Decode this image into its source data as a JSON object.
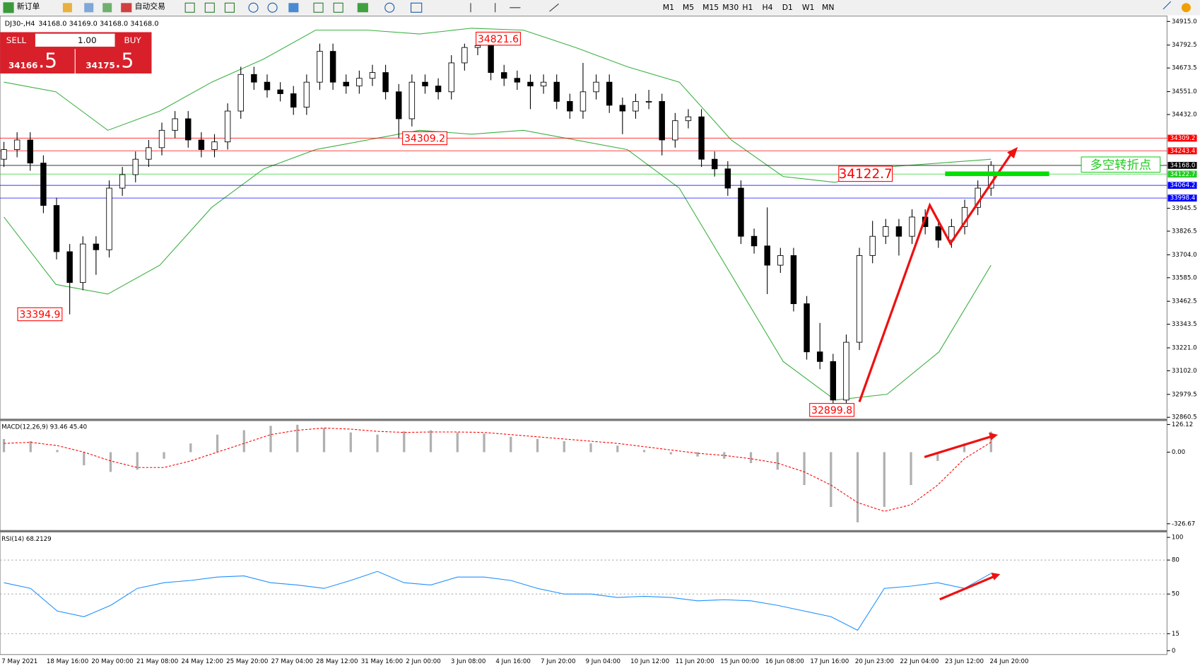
{
  "toolbar": {
    "new_order": "新订单",
    "auto_trade": "自动交易",
    "timeframes": [
      "M1",
      "M5",
      "M15",
      "M30",
      "H1",
      "H4",
      "D1",
      "W1",
      "MN"
    ]
  },
  "order_panel": {
    "sell": "SELL",
    "buy": "BUY",
    "volume": "1.00",
    "bid_main": "34166",
    "bid_frac": ".5",
    "ask_main": "34175",
    "ask_frac": ".5"
  },
  "chart_data": [
    {
      "type": "candlestick",
      "title": "DJ30-,H4",
      "header_prices": "34168.0 34169.0 34168.0 34168.0",
      "candles": [
        [
          34200,
          34290,
          34160,
          34250
        ],
        [
          34250,
          34340,
          34210,
          34300
        ],
        [
          34300,
          34340,
          34140,
          34180
        ],
        [
          34180,
          34220,
          33920,
          33960
        ],
        [
          33960,
          34000,
          33680,
          33720
        ],
        [
          33720,
          33760,
          33394.9,
          33560
        ],
        [
          33560,
          33800,
          33520,
          33760
        ],
        [
          33760,
          33800,
          33600,
          33730
        ],
        [
          33730,
          34090,
          33690,
          34050
        ],
        [
          34050,
          34160,
          34010,
          34120
        ],
        [
          34120,
          34240,
          34080,
          34200
        ],
        [
          34200,
          34300,
          34160,
          34260
        ],
        [
          34260,
          34390,
          34220,
          34350
        ],
        [
          34350,
          34450,
          34310,
          34410
        ],
        [
          34410,
          34450,
          34260,
          34300
        ],
        [
          34300,
          34340,
          34210,
          34250
        ],
        [
          34250,
          34330,
          34210,
          34290
        ],
        [
          34290,
          34490,
          34250,
          34450
        ],
        [
          34450,
          34680,
          34410,
          34640
        ],
        [
          34640,
          34680,
          34560,
          34600
        ],
        [
          34600,
          34640,
          34520,
          34560
        ],
        [
          34560,
          34600,
          34500,
          34540
        ],
        [
          34540,
          34580,
          34430,
          34470
        ],
        [
          34470,
          34640,
          34430,
          34600
        ],
        [
          34600,
          34800,
          34560,
          34760
        ],
        [
          34760,
          34800,
          34560,
          34600
        ],
        [
          34600,
          34640,
          34540,
          34580
        ],
        [
          34580,
          34660,
          34540,
          34620
        ],
        [
          34620,
          34690,
          34580,
          34650
        ],
        [
          34650,
          34690,
          34510,
          34550
        ],
        [
          34550,
          34590,
          34309.2,
          34410
        ],
        [
          34410,
          34640,
          34370,
          34600
        ],
        [
          34600,
          34640,
          34540,
          34580
        ],
        [
          34580,
          34620,
          34510,
          34550
        ],
        [
          34550,
          34740,
          34510,
          34700
        ],
        [
          34700,
          34800,
          34660,
          34780
        ],
        [
          34780,
          34821.6,
          34740,
          34790
        ],
        [
          34790,
          34810,
          34610,
          34650
        ],
        [
          34650,
          34690,
          34580,
          34620
        ],
        [
          34620,
          34660,
          34560,
          34600
        ],
        [
          34600,
          34640,
          34460,
          34580
        ],
        [
          34580,
          34640,
          34540,
          34600
        ],
        [
          34600,
          34640,
          34460,
          34500
        ],
        [
          34500,
          34540,
          34410,
          34450
        ],
        [
          34450,
          34700,
          34410,
          34550
        ],
        [
          34550,
          34640,
          34510,
          34600
        ],
        [
          34600,
          34640,
          34440,
          34480
        ],
        [
          34480,
          34520,
          34330,
          34450
        ],
        [
          34450,
          34540,
          34410,
          34500
        ],
        [
          34500,
          34560,
          34460,
          34500
        ],
        [
          34500,
          34540,
          34220,
          34300
        ],
        [
          34300,
          34440,
          34260,
          34400
        ],
        [
          34400,
          34460,
          34360,
          34420
        ],
        [
          34420,
          34460,
          34160,
          34200
        ],
        [
          34200,
          34240,
          34110,
          34150
        ],
        [
          34150,
          34190,
          34010,
          34050
        ],
        [
          34050,
          34090,
          33760,
          33800
        ],
        [
          33800,
          33840,
          33710,
          33750
        ],
        [
          33750,
          33950,
          33500,
          33650
        ],
        [
          33650,
          33740,
          33610,
          33700
        ],
        [
          33700,
          33740,
          33410,
          33450
        ],
        [
          33450,
          33490,
          33160,
          33200
        ],
        [
          33200,
          33350,
          33110,
          33150
        ],
        [
          33150,
          33190,
          32899.8,
          32950
        ],
        [
          32950,
          33290,
          32910,
          33250
        ],
        [
          33250,
          33740,
          33210,
          33700
        ],
        [
          33700,
          33880,
          33660,
          33800
        ],
        [
          33800,
          33890,
          33760,
          33850
        ],
        [
          33850,
          33890,
          33700,
          33800
        ],
        [
          33800,
          33940,
          33760,
          33900
        ],
        [
          33900,
          33940,
          33810,
          33850
        ],
        [
          33850,
          33890,
          33740,
          33780
        ],
        [
          33780,
          33890,
          33740,
          33850
        ],
        [
          33850,
          33990,
          33810,
          33950
        ],
        [
          33950,
          34090,
          33910,
          34050
        ],
        [
          34050,
          34190,
          34010,
          34168
        ]
      ],
      "bb_upper": [
        34600,
        34550,
        34350,
        34450,
        34600,
        34720,
        34870,
        34870,
        34850,
        34880,
        34870,
        34780,
        34680,
        34600,
        34300,
        34110,
        34080,
        34160,
        34180,
        34200
      ],
      "bb_lower": [
        33900,
        33550,
        33500,
        33650,
        33950,
        34150,
        34250,
        34300,
        34350,
        34330,
        34350,
        34300,
        34250,
        34050,
        33600,
        33150,
        32950,
        32980,
        33200,
        33650
      ],
      "band_color": "#3cb043",
      "up_color": "#ffffff",
      "down_color": "#000000",
      "ylim": [
        32853,
        34939
      ],
      "yticks": [
        {
          "value": 34915,
          "label": "34915.0"
        },
        {
          "value": 34792.5,
          "label": "34792.5"
        },
        {
          "value": 34673.5,
          "label": "34673.5"
        },
        {
          "value": 34551,
          "label": "34551.0"
        },
        {
          "value": 34432,
          "label": "34432.0"
        },
        {
          "value": 33945.5,
          "label": "33945.5"
        },
        {
          "value": 33826.5,
          "label": "33826.5"
        },
        {
          "value": 33704,
          "label": "33704.0"
        },
        {
          "value": 33585,
          "label": "33585.0"
        },
        {
          "value": 33462.5,
          "label": "33462.5"
        },
        {
          "value": 33343.5,
          "label": "33343.5"
        },
        {
          "value": 33221,
          "label": "33221.0"
        },
        {
          "value": 33102,
          "label": "33102.0"
        },
        {
          "value": 32979.5,
          "label": "32979.5"
        },
        {
          "value": 32860.5,
          "label": "32860.5"
        }
      ],
      "levels": [
        {
          "value": 34309.2,
          "label": "34309.2",
          "color": "#ff0000"
        },
        {
          "value": 34243.4,
          "label": "34243.4",
          "color": "#ff0000"
        },
        {
          "value": 34168,
          "label": "34168.0",
          "color": "#000000"
        },
        {
          "value": 34122.7,
          "label": "34122.7",
          "color": "#22cc22"
        },
        {
          "value": 34064.2,
          "label": "34064.2",
          "color": "#0000ff"
        },
        {
          "value": 33998.4,
          "label": "33998.4",
          "color": "#0000ff"
        }
      ],
      "annotations": [
        "34821.6",
        "34309.2",
        "33394.9",
        "32899.8",
        "34122.7",
        "多空转折点"
      ],
      "x_labels": [
        "7 May 2021",
        "18 May 16:00",
        "20 May 00:00",
        "21 May 08:00",
        "24 May 12:00",
        "25 May 20:00",
        "27 May 04:00",
        "28 May 12:00",
        "31 May 16:00",
        "2 Jun 00:00",
        "3 Jun 08:00",
        "4 Jun 16:00",
        "7 Jun 20:00",
        "9 Jun 04:00",
        "10 Jun 12:00",
        "11 Jun 20:00",
        "15 Jun 00:00",
        "16 Jun 08:00",
        "17 Jun 16:00",
        "20 Jun 23:00",
        "22 Jun 04:00",
        "23 Jun 12:00",
        "24 Jun 20:00"
      ]
    },
    {
      "type": "macd",
      "label": "MACD(12,26,9) 93.46 45.40",
      "histogram": [
        60,
        50,
        10,
        -60,
        -90,
        -80,
        -30,
        40,
        80,
        100,
        120,
        125,
        110,
        90,
        80,
        95,
        100,
        90,
        85,
        70,
        60,
        50,
        40,
        30,
        10,
        -10,
        -20,
        -30,
        -50,
        -80,
        -150,
        -250,
        -320,
        -250,
        -150,
        -40,
        40,
        93.46
      ],
      "signal": [
        40,
        45,
        30,
        0,
        -40,
        -70,
        -70,
        -40,
        0,
        40,
        80,
        100,
        110,
        105,
        95,
        90,
        92,
        92,
        90,
        80,
        70,
        60,
        50,
        40,
        25,
        10,
        -5,
        -15,
        -30,
        -50,
        -90,
        -150,
        -230,
        -270,
        -240,
        -150,
        -30,
        45.4
      ],
      "hist_color": "#b0b0b0",
      "signal_color": "#ff0000",
      "ylim": [
        -340,
        135
      ],
      "yticks": [
        126.12,
        {
          "value": 0,
          "label": "0.00"
        },
        -326.67
      ]
    },
    {
      "type": "line",
      "label": "RSI(14) 68.2129",
      "values": [
        60,
        55,
        35,
        30,
        40,
        55,
        60,
        62,
        65,
        66,
        60,
        58,
        55,
        62,
        70,
        60,
        58,
        65,
        65,
        62,
        55,
        50,
        50,
        47,
        48,
        47,
        44,
        45,
        44,
        40,
        35,
        30,
        18,
        55,
        57,
        60,
        55,
        68.2129
      ],
      "color": "#1e90ff",
      "ylim": [
        0,
        100
      ],
      "yticks": [
        100,
        80,
        50,
        15,
        0
      ]
    }
  ]
}
